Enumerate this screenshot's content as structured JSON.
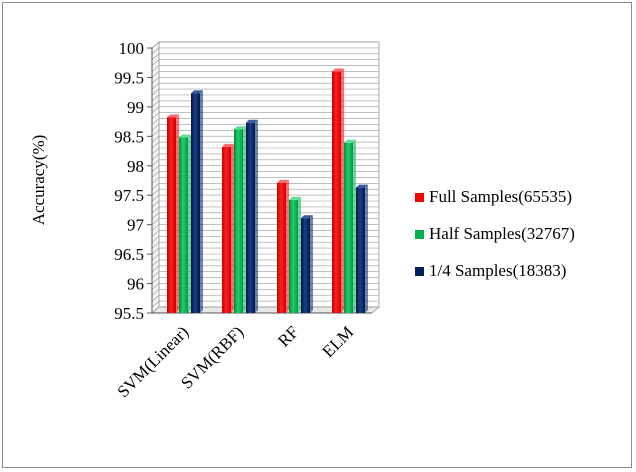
{
  "chart_data": {
    "type": "bar",
    "title": "",
    "xlabel": "",
    "ylabel": "Accuracy(%)",
    "ylim": [
      95.5,
      100
    ],
    "yticks": [
      "95.5",
      "96",
      "96.5",
      "97",
      "97.5",
      "98",
      "98.5",
      "99",
      "99.5",
      "100"
    ],
    "categories": [
      "SVM(Linear)",
      "SVM(RBF)",
      "RF",
      "ELM"
    ],
    "series": [
      {
        "name": "Full Samples(65535)",
        "color": "#ff0000",
        "values": [
          98.82,
          98.32,
          97.71,
          99.6
        ]
      },
      {
        "name": "Half Samples(32767)",
        "color": "#00b050",
        "values": [
          98.48,
          98.62,
          97.42,
          98.39
        ]
      },
      {
        "name": "1/4 Samples(18383)",
        "color": "#002060",
        "values": [
          99.23,
          98.73,
          97.11,
          97.63
        ]
      }
    ],
    "grid": true,
    "legend": "right"
  }
}
